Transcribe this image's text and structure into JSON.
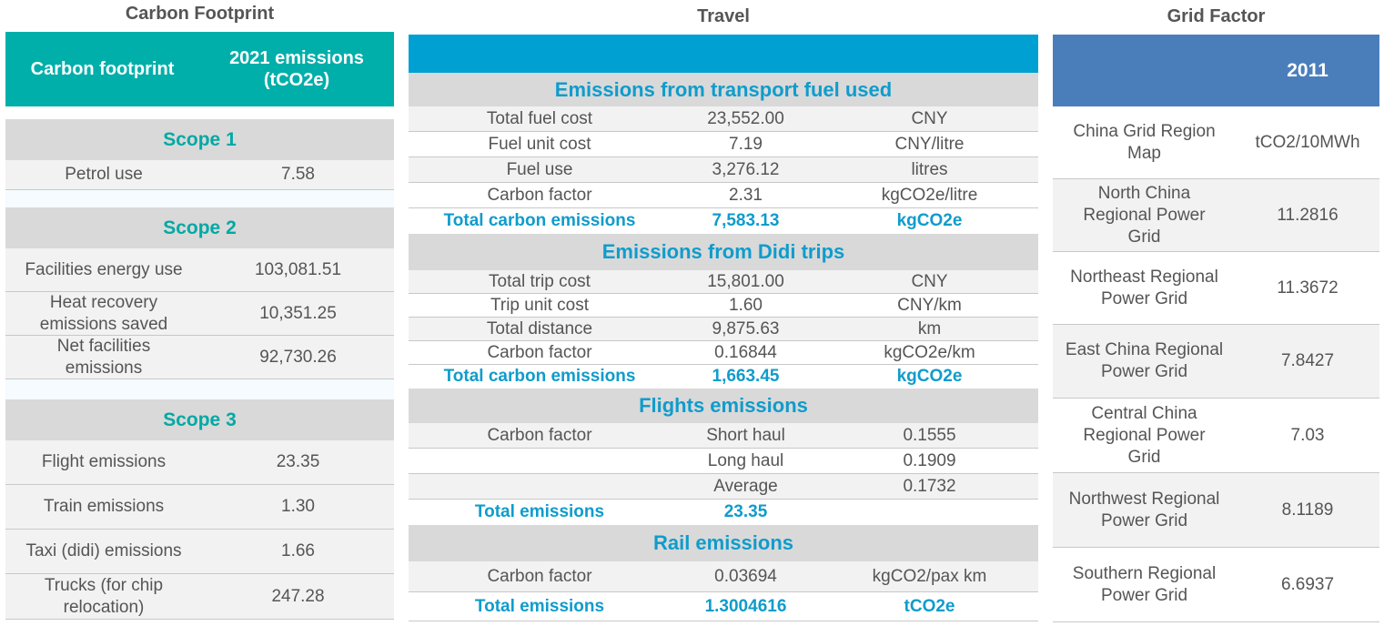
{
  "carbon": {
    "title": "Carbon Footprint",
    "header": {
      "col1": "Carbon footprint",
      "col2": "2021 emissions (tCO2e)"
    },
    "scope1": {
      "label": "Scope 1",
      "rows": [
        {
          "name": "Petrol use",
          "value": "7.58"
        }
      ]
    },
    "scope2": {
      "label": "Scope 2",
      "rows": [
        {
          "name": "Facilities energy use",
          "value": "103,081.51"
        },
        {
          "name": "Heat recovery emissions saved",
          "value": "10,351.25"
        },
        {
          "name": "Net facilities emissions",
          "value": "92,730.26"
        }
      ]
    },
    "scope3": {
      "label": "Scope 3",
      "rows": [
        {
          "name": "Flight emissions",
          "value": "23.35"
        },
        {
          "name": "Train emissions",
          "value": "1.30"
        },
        {
          "name": "Taxi (didi) emissions",
          "value": "1.66"
        },
        {
          "name": "Trucks (for chip relocation)",
          "value": "247.28"
        }
      ]
    }
  },
  "travel": {
    "title": "Travel",
    "fuel": {
      "label": "Emissions from transport fuel used",
      "rows": [
        {
          "a": "Total fuel cost",
          "b": "23,552.00",
          "c": "CNY"
        },
        {
          "a": "Fuel unit cost",
          "b": "7.19",
          "c": "CNY/litre"
        },
        {
          "a": "Fuel use",
          "b": "3,276.12",
          "c": "litres"
        },
        {
          "a": "Carbon factor",
          "b": "2.31",
          "c": "kgCO2e/litre"
        }
      ],
      "total": {
        "a": "Total carbon emissions",
        "b": "7,583.13",
        "c": "kgCO2e"
      }
    },
    "didi": {
      "label": "Emissions from Didi trips",
      "rows": [
        {
          "a": "Total trip cost",
          "b": "15,801.00",
          "c": "CNY"
        },
        {
          "a": "Trip unit cost",
          "b": "1.60",
          "c": "CNY/km"
        },
        {
          "a": "Total distance",
          "b": "9,875.63",
          "c": "km"
        },
        {
          "a": "Carbon factor",
          "b": "0.16844",
          "c": "kgCO2e/km"
        }
      ],
      "total": {
        "a": "Total carbon emissions",
        "b": "1,663.45",
        "c": "kgCO2e"
      }
    },
    "flights": {
      "label": "Flights emissions",
      "rows": [
        {
          "a": "Carbon factor",
          "b": "Short haul",
          "c": "0.1555"
        },
        {
          "a": "",
          "b": "Long haul",
          "c": "0.1909"
        },
        {
          "a": "",
          "b": "Average",
          "c": "0.1732"
        }
      ],
      "total": {
        "a": "Total emissions",
        "b": "23.35",
        "c": ""
      }
    },
    "rail": {
      "label": "Rail emissions",
      "rows": [
        {
          "a": "Carbon factor",
          "b": "0.03694",
          "c": "kgCO2/pax km"
        }
      ],
      "total": {
        "a": "Total emissions",
        "b": "1.3004616",
        "c": "tCO2e"
      }
    }
  },
  "grid": {
    "title": "Grid Factor",
    "header": {
      "col1": "",
      "col2": "2011"
    },
    "rows": [
      {
        "name": "China Grid Region Map",
        "value": "tCO2/10MWh"
      },
      {
        "name": "North China Regional Power Grid",
        "value": "11.2816"
      },
      {
        "name": "Northeast Regional Power Grid",
        "value": "11.3672"
      },
      {
        "name": "East China Regional Power Grid",
        "value": "7.8427"
      },
      {
        "name": "Central China Regional Power Grid",
        "value": "7.03"
      },
      {
        "name": "Northwest Regional Power Grid",
        "value": "8.1189"
      },
      {
        "name": "Southern Regional Power Grid",
        "value": "6.6937"
      }
    ]
  },
  "colors": {
    "teal": "#00afaa",
    "blue": "#00a0d2",
    "grid_blue": "#4a7ebb",
    "total_blue": "#0f9ccc"
  }
}
